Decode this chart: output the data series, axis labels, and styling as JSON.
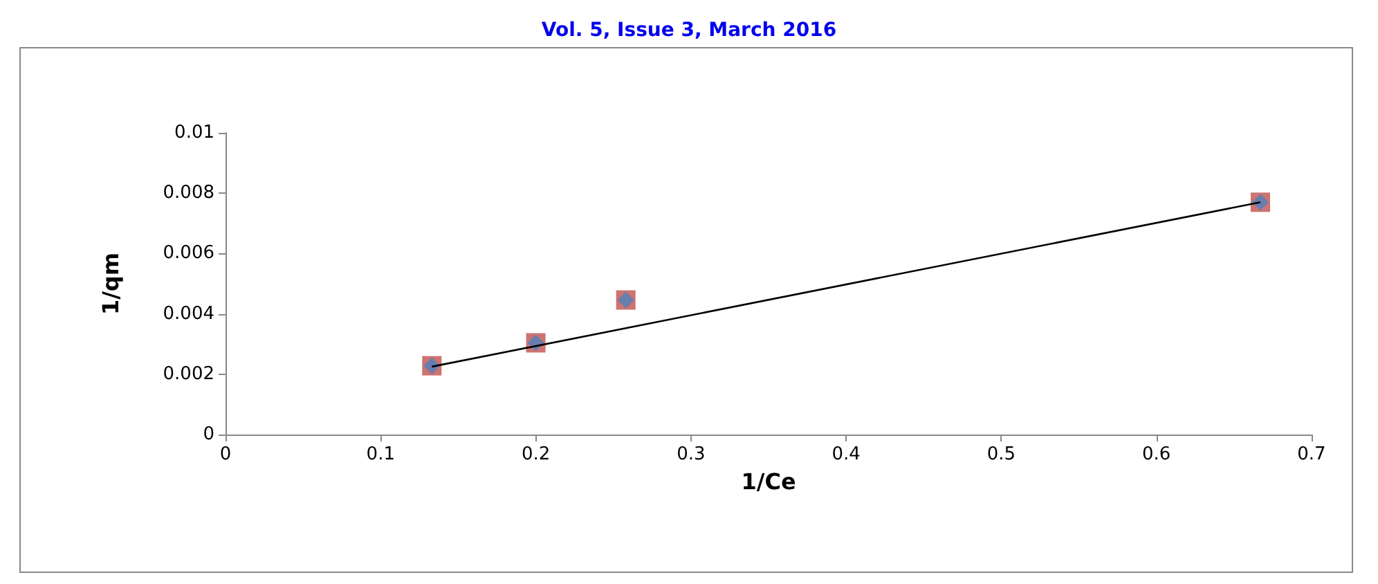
{
  "chart_data": {
    "type": "scatter",
    "annotations": [
      "Vol. 5, Issue 3, March 2016"
    ],
    "xlabel": "1/Ce",
    "ylabel": "1/qm",
    "x": [
      0.133,
      0.2,
      0.258,
      0.667
    ],
    "series": [
      {
        "color": "#c0504d",
        "marker": "square",
        "values": [
          0.00228,
          0.00304,
          0.00446,
          0.0077
        ]
      },
      {
        "color": "#4f81bd",
        "marker": "diamond",
        "values": [
          0.00228,
          0.00304,
          0.00446,
          0.0077
        ]
      },
      {
        "type": "line",
        "color": "#000000",
        "marker": "none",
        "x": [
          0.133,
          0.667
        ],
        "values": [
          0.00225,
          0.0077
        ]
      }
    ],
    "xlim": [
      0,
      0.7
    ],
    "xticks": [
      0,
      0.1,
      0.2,
      0.3,
      0.4,
      0.5,
      0.6,
      0.7
    ],
    "ylim": [
      0,
      0.01
    ],
    "yticks": [
      0,
      0.002,
      0.004,
      0.006,
      0.008,
      0.01
    ],
    "grid": false
  }
}
